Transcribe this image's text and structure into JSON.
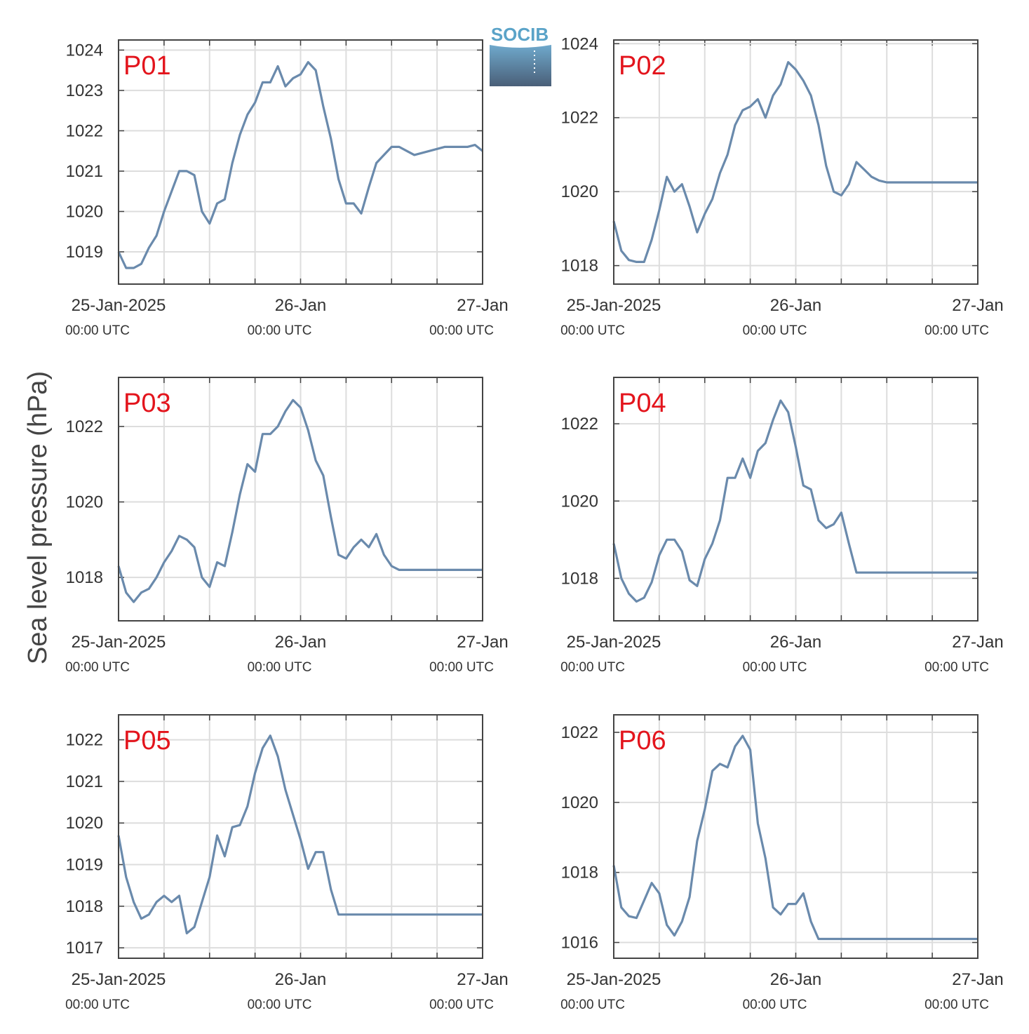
{
  "ylabel": "Sea level pressure (hPa)",
  "logo": {
    "text": "SOCIB",
    "color": "#5aa3c8"
  },
  "colors": {
    "line": "#6a8aac",
    "grid": "#dddddd",
    "label": "#e3141c"
  },
  "x_ticks": [
    {
      "main": "25-Jan-2025",
      "sub": "00:00 UTC"
    },
    {
      "main": "26-Jan",
      "sub": "00:00 UTC"
    },
    {
      "main": "27-Jan",
      "sub": "00:00 UTC"
    }
  ],
  "chart_data": [
    {
      "type": "line",
      "label": "P01",
      "xlim": [
        0,
        48
      ],
      "ylim": [
        1018.2,
        1024.25
      ],
      "yticks": [
        1019,
        1020,
        1021,
        1022,
        1023,
        1024
      ],
      "x": [
        0,
        1,
        2,
        3,
        4,
        5,
        6,
        7,
        8,
        9,
        10,
        11,
        12,
        13,
        14,
        15,
        16,
        17,
        18,
        19,
        20,
        21,
        22,
        23,
        24,
        25,
        26,
        27,
        28,
        29,
        30,
        31,
        32,
        33,
        34,
        35,
        36,
        37,
        38,
        39,
        40,
        41,
        42,
        43,
        44,
        45,
        46,
        47,
        48
      ],
      "y": [
        1019.0,
        1018.6,
        1018.6,
        1018.7,
        1019.1,
        1019.4,
        1020.0,
        1020.5,
        1021.0,
        1021.0,
        1020.9,
        1020.0,
        1019.7,
        1020.2,
        1020.3,
        1021.2,
        1021.9,
        1022.4,
        1022.7,
        1023.2,
        1023.2,
        1023.6,
        1023.1,
        1023.3,
        1023.4,
        1023.7,
        1023.5,
        1022.6,
        1021.8,
        1020.8,
        1020.2,
        1020.2,
        1019.95,
        1020.6,
        1021.2,
        1021.4,
        1021.6,
        1021.6,
        1021.5,
        1021.4,
        1021.45,
        1021.5,
        1021.55,
        1021.6,
        1021.6,
        1021.6,
        1021.6,
        1021.65,
        1021.5
      ]
    },
    {
      "type": "line",
      "label": "P02",
      "xlim": [
        0,
        48
      ],
      "ylim": [
        1017.5,
        1024.1
      ],
      "yticks": [
        1018,
        1020,
        1022,
        1024
      ],
      "x": [
        0,
        1,
        2,
        3,
        4,
        5,
        6,
        7,
        8,
        9,
        10,
        11,
        12,
        13,
        14,
        15,
        16,
        17,
        18,
        19,
        20,
        21,
        22,
        23,
        24,
        25,
        26,
        27,
        28,
        29,
        30,
        31,
        32,
        33,
        34,
        35,
        36,
        37,
        38,
        39,
        40,
        41,
        42,
        43,
        44,
        45,
        46,
        47,
        48
      ],
      "y": [
        1019.2,
        1018.4,
        1018.15,
        1018.1,
        1018.1,
        1018.7,
        1019.5,
        1020.4,
        1020.0,
        1020.2,
        1019.6,
        1018.9,
        1019.4,
        1019.8,
        1020.5,
        1021.0,
        1021.8,
        1022.2,
        1022.3,
        1022.5,
        1022.0,
        1022.6,
        1022.9,
        1023.5,
        1023.3,
        1023.0,
        1022.6,
        1021.8,
        1020.7,
        1020.0,
        1019.9,
        1020.2,
        1020.8,
        1020.6,
        1020.4,
        1020.3,
        1020.25,
        1020.25,
        1020.25,
        1020.25,
        1020.25,
        1020.25,
        1020.25,
        1020.25,
        1020.25,
        1020.25,
        1020.25,
        1020.25,
        1020.25
      ]
    },
    {
      "type": "line",
      "label": "P03",
      "xlim": [
        0,
        48
      ],
      "ylim": [
        1016.85,
        1023.3
      ],
      "yticks": [
        1018,
        1020,
        1022
      ],
      "x": [
        0,
        1,
        2,
        3,
        4,
        5,
        6,
        7,
        8,
        9,
        10,
        11,
        12,
        13,
        14,
        15,
        16,
        17,
        18,
        19,
        20,
        21,
        22,
        23,
        24,
        25,
        26,
        27,
        28,
        29,
        30,
        31,
        32,
        33,
        34,
        35,
        36,
        37,
        38,
        39,
        40,
        41,
        42,
        43,
        44,
        45,
        46,
        47,
        48
      ],
      "y": [
        1018.3,
        1017.6,
        1017.35,
        1017.6,
        1017.7,
        1018.0,
        1018.4,
        1018.7,
        1019.1,
        1019.0,
        1018.8,
        1018.0,
        1017.75,
        1018.4,
        1018.3,
        1019.2,
        1020.2,
        1021.0,
        1020.8,
        1021.8,
        1021.8,
        1022.0,
        1022.4,
        1022.7,
        1022.5,
        1021.9,
        1021.1,
        1020.7,
        1019.6,
        1018.6,
        1018.5,
        1018.8,
        1019.0,
        1018.8,
        1019.15,
        1018.6,
        1018.3,
        1018.2,
        1018.2,
        1018.2,
        1018.2,
        1018.2,
        1018.2,
        1018.2,
        1018.2,
        1018.2,
        1018.2,
        1018.2,
        1018.2
      ]
    },
    {
      "type": "line",
      "label": "P04",
      "xlim": [
        0,
        48
      ],
      "ylim": [
        1016.9,
        1023.2
      ],
      "yticks": [
        1018,
        1020,
        1022
      ],
      "x": [
        0,
        1,
        2,
        3,
        4,
        5,
        6,
        7,
        8,
        9,
        10,
        11,
        12,
        13,
        14,
        15,
        16,
        17,
        18,
        19,
        20,
        21,
        22,
        23,
        24,
        25,
        26,
        27,
        28,
        29,
        30,
        31,
        32,
        33,
        34,
        35,
        36,
        37,
        38,
        39,
        40,
        41,
        42,
        43,
        44,
        45,
        46,
        47,
        48
      ],
      "y": [
        1018.9,
        1018.0,
        1017.6,
        1017.4,
        1017.5,
        1017.9,
        1018.6,
        1019.0,
        1019.0,
        1018.7,
        1017.95,
        1017.8,
        1018.5,
        1018.9,
        1019.5,
        1020.6,
        1020.6,
        1021.1,
        1020.6,
        1021.3,
        1021.5,
        1022.1,
        1022.6,
        1022.3,
        1021.4,
        1020.4,
        1020.3,
        1019.5,
        1019.3,
        1019.4,
        1019.7,
        1018.9,
        1018.15,
        1018.15,
        1018.15,
        1018.15,
        1018.15,
        1018.15,
        1018.15,
        1018.15,
        1018.15,
        1018.15,
        1018.15,
        1018.15,
        1018.15,
        1018.15,
        1018.15,
        1018.15,
        1018.15
      ]
    },
    {
      "type": "line",
      "label": "P05",
      "xlim": [
        0,
        48
      ],
      "ylim": [
        1016.75,
        1022.6
      ],
      "yticks": [
        1017,
        1018,
        1019,
        1020,
        1021,
        1022
      ],
      "x": [
        0,
        1,
        2,
        3,
        4,
        5,
        6,
        7,
        8,
        9,
        10,
        11,
        12,
        13,
        14,
        15,
        16,
        17,
        18,
        19,
        20,
        21,
        22,
        23,
        24,
        25,
        26,
        27,
        28,
        29,
        30,
        31,
        32,
        33,
        34,
        35,
        36,
        37,
        38,
        39,
        40,
        41,
        42,
        43,
        44,
        45,
        46,
        47,
        48
      ],
      "y": [
        1019.7,
        1018.7,
        1018.1,
        1017.7,
        1017.8,
        1018.1,
        1018.25,
        1018.1,
        1018.25,
        1017.35,
        1017.5,
        1018.1,
        1018.7,
        1019.7,
        1019.2,
        1019.9,
        1019.95,
        1020.4,
        1021.2,
        1021.8,
        1022.1,
        1021.6,
        1020.8,
        1020.2,
        1019.6,
        1018.9,
        1019.3,
        1019.3,
        1018.4,
        1017.8,
        1017.8,
        1017.8,
        1017.8,
        1017.8,
        1017.8,
        1017.8,
        1017.8,
        1017.8,
        1017.8,
        1017.8,
        1017.8,
        1017.8,
        1017.8,
        1017.8,
        1017.8,
        1017.8,
        1017.8,
        1017.8,
        1017.8
      ]
    },
    {
      "type": "line",
      "label": "P06",
      "xlim": [
        0,
        48
      ],
      "ylim": [
        1015.55,
        1022.5
      ],
      "yticks": [
        1016,
        1018,
        1020,
        1022
      ],
      "x": [
        0,
        1,
        2,
        3,
        4,
        5,
        6,
        7,
        8,
        9,
        10,
        11,
        12,
        13,
        14,
        15,
        16,
        17,
        18,
        19,
        20,
        21,
        22,
        23,
        24,
        25,
        26,
        27,
        28,
        29,
        30,
        31,
        32,
        33,
        34,
        35,
        36,
        37,
        38,
        39,
        40,
        41,
        42,
        43,
        44,
        45,
        46,
        47,
        48
      ],
      "y": [
        1018.2,
        1017.0,
        1016.75,
        1016.7,
        1017.2,
        1017.7,
        1017.4,
        1016.5,
        1016.2,
        1016.6,
        1017.3,
        1018.9,
        1019.8,
        1020.9,
        1021.1,
        1021.0,
        1021.6,
        1021.9,
        1021.5,
        1019.4,
        1018.4,
        1017.0,
        1016.8,
        1017.1,
        1017.1,
        1017.4,
        1016.6,
        1016.1,
        1016.1,
        1016.1,
        1016.1,
        1016.1,
        1016.1,
        1016.1,
        1016.1,
        1016.1,
        1016.1,
        1016.1,
        1016.1,
        1016.1,
        1016.1,
        1016.1,
        1016.1,
        1016.1,
        1016.1,
        1016.1,
        1016.1,
        1016.1,
        1016.1
      ]
    }
  ]
}
